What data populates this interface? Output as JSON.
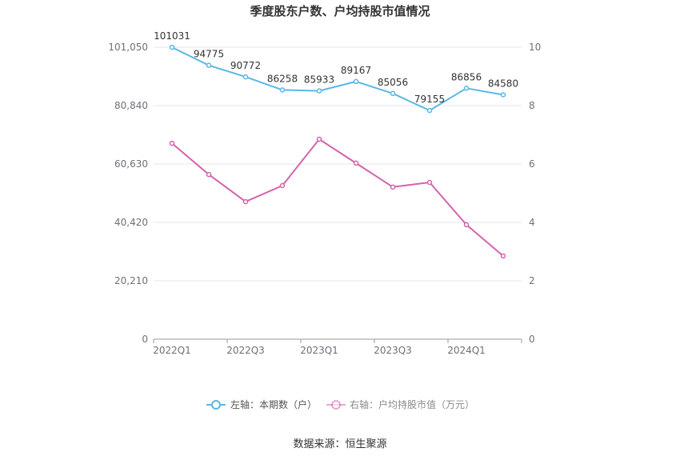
{
  "source": "数据来源：恒生聚源",
  "colors": {
    "background": "#ffffff",
    "grid": "#e0e6f1",
    "axis": "#9a9a9a",
    "tick_text": "#6e7079"
  },
  "chart_data": {
    "type": "line",
    "title": "季度股东户数、户均持股市值情况",
    "categories": [
      "2022Q1",
      "",
      "2022Q3",
      "",
      "2023Q1",
      "",
      "2023Q3",
      "",
      "2024Q1",
      ""
    ],
    "y_left": {
      "ylim": [
        0,
        101050
      ],
      "ticks": [
        0,
        20210,
        40420,
        60630,
        80840,
        101050
      ]
    },
    "y_right": {
      "ylim": [
        0,
        10
      ],
      "ticks": [
        0,
        2,
        4,
        6,
        8,
        10
      ]
    },
    "grid": true,
    "legend_position": "bottom-center",
    "series": [
      {
        "name": "左轴：本期数（户）",
        "axis": "left",
        "color": "#5ab8e6",
        "show_data_labels": true,
        "values": [
          101031,
          94775,
          90772,
          86258,
          85933,
          89167,
          85056,
          79155,
          86856,
          84580
        ]
      },
      {
        "name": "右轴：户均持股市值（万元）",
        "axis": "right",
        "color": "#d463ad",
        "show_data_labels": false,
        "values": [
          6.71,
          5.64,
          4.71,
          5.26,
          6.85,
          6.03,
          5.21,
          5.37,
          3.92,
          2.85
        ]
      }
    ]
  }
}
